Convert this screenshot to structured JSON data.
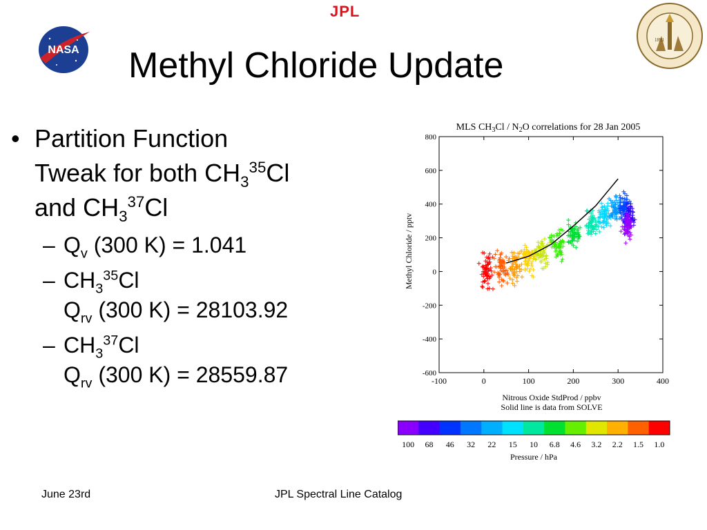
{
  "header": {
    "jpl_logo_text": "JPL",
    "nasa_logo_text": "NASA",
    "caltech_seal_text": "CALIFORNIA INSTITUTE OF TECHNOLOGY",
    "caltech_seal_year": "1891",
    "title": "Methyl Chloride Update"
  },
  "bullets": {
    "b1_l1": "Partition Function",
    "b1_l2_a": "Tweak for both CH",
    "b1_l2_sub": "3",
    "b1_l2_sup": "35",
    "b1_l2_b": "Cl",
    "b1_l3_a": "and CH",
    "b1_l3_sub": "3",
    "b1_l3_sup": "37",
    "b1_l3_b": "Cl",
    "s1_a": "Q",
    "s1_sub": "v",
    "s1_b": " (300 K) = 1.041",
    "s2_l1_a": "CH",
    "s2_l1_sub": "3",
    "s2_l1_sup": "35",
    "s2_l1_b": "Cl",
    "s2_l2_a": "Q",
    "s2_l2_sub": "rv",
    "s2_l2_b": " (300 K) = 28103.92",
    "s3_l1_a": "CH",
    "s3_l1_sub": "3",
    "s3_l1_sup": "37",
    "s3_l1_b": "Cl",
    "s3_l2_a": "Q",
    "s3_l2_sub": "rv",
    "s3_l2_b": " (300 K) = 28559.87"
  },
  "chart_data": {
    "type": "scatter",
    "title": "MLS CH3Cl / N2O correlations for 28 Jan 2005",
    "title_a": "MLS CH",
    "title_sub1": "3",
    "title_b": "Cl / N",
    "title_sub2": "2",
    "title_c": "O correlations for 28 Jan 2005",
    "xlabel": "Nitrous Oxide StdProd / ppbv",
    "xlabel2": "Solid line is data from SOLVE",
    "ylabel": "Methyl Chloride / pptv",
    "xlim": [
      -100,
      400
    ],
    "ylim": [
      -600,
      800
    ],
    "x_ticks": [
      "-100",
      "0",
      "100",
      "200",
      "300",
      "400"
    ],
    "y_ticks": [
      "800",
      "600",
      "400",
      "200",
      "0",
      "-200",
      "-400",
      "-600"
    ],
    "marker": "+",
    "series": [
      {
        "pressure": "1.0",
        "x_center": 5,
        "y_center": 0,
        "x_spread": 25,
        "y_spread": 150,
        "color": "#ff0000"
      },
      {
        "pressure": "1.5",
        "x_center": 40,
        "y_center": 20,
        "x_spread": 22,
        "y_spread": 130,
        "color": "#ff5a00"
      },
      {
        "pressure": "2.2",
        "x_center": 70,
        "y_center": 40,
        "x_spread": 20,
        "y_spread": 130,
        "color": "#ff9900"
      },
      {
        "pressure": "3.2",
        "x_center": 100,
        "y_center": 80,
        "x_spread": 22,
        "y_spread": 130,
        "color": "#ffd000"
      },
      {
        "pressure": "4.6",
        "x_center": 130,
        "y_center": 110,
        "x_spread": 22,
        "y_spread": 130,
        "color": "#c8e600"
      },
      {
        "pressure": "6.8",
        "x_center": 165,
        "y_center": 160,
        "x_spread": 22,
        "y_spread": 120,
        "color": "#33ee00"
      },
      {
        "pressure": "10",
        "x_center": 200,
        "y_center": 210,
        "x_spread": 22,
        "y_spread": 110,
        "color": "#00dd33"
      },
      {
        "pressure": "15",
        "x_center": 240,
        "y_center": 280,
        "x_spread": 22,
        "y_spread": 110,
        "color": "#00e8b0"
      },
      {
        "pressure": "22",
        "x_center": 270,
        "y_center": 330,
        "x_spread": 22,
        "y_spread": 110,
        "color": "#00d8ff"
      },
      {
        "pressure": "32",
        "x_center": 295,
        "y_center": 370,
        "x_spread": 18,
        "y_spread": 110,
        "color": "#0099ff"
      },
      {
        "pressure": "46",
        "x_center": 315,
        "y_center": 380,
        "x_spread": 16,
        "y_spread": 110,
        "color": "#0044ff"
      },
      {
        "pressure": "68",
        "x_center": 325,
        "y_center": 330,
        "x_spread": 15,
        "y_spread": 110,
        "color": "#3300ff"
      },
      {
        "pressure": "100",
        "x_center": 320,
        "y_center": 270,
        "x_spread": 16,
        "y_spread": 120,
        "color": "#9900ff"
      }
    ],
    "solve_line": {
      "x": [
        50,
        100,
        150,
        200,
        250,
        300
      ],
      "y": [
        50,
        90,
        160,
        270,
        390,
        550
      ]
    },
    "colorbar": {
      "label": "Pressure / hPa",
      "levels": [
        "100",
        "68",
        "46",
        "32",
        "22",
        "15",
        "10",
        "6.8",
        "4.6",
        "3.2",
        "2.2",
        "1.5",
        "1.0"
      ],
      "colors": [
        "#8a00ff",
        "#4400ff",
        "#0033ff",
        "#0077ff",
        "#00b0ff",
        "#00e0ff",
        "#00e8a0",
        "#00e030",
        "#66ee00",
        "#e0e600",
        "#ffb000",
        "#ff6000",
        "#ff0000"
      ]
    }
  },
  "footer": {
    "date": "June 23rd",
    "title": "JPL Spectral Line Catalog"
  }
}
